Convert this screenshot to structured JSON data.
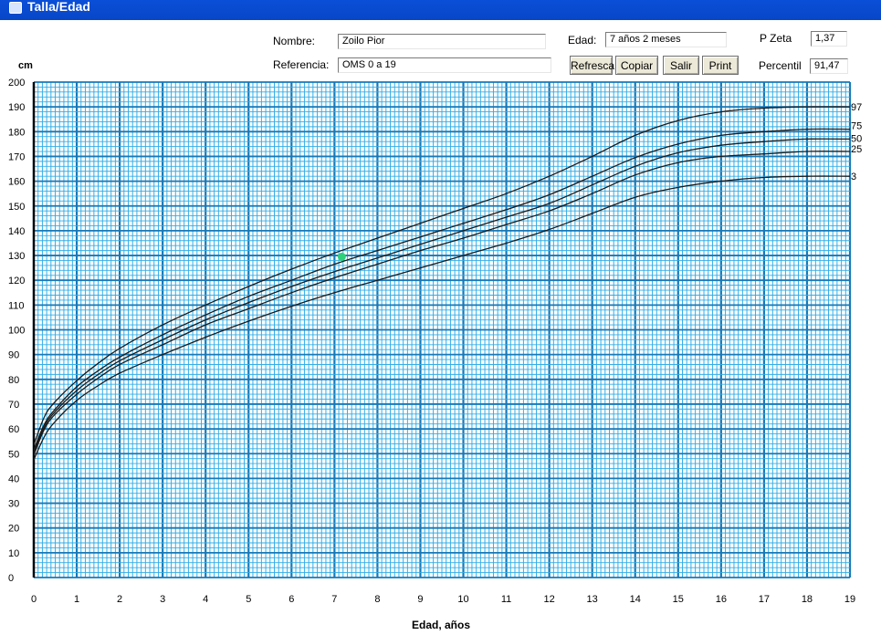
{
  "window": {
    "title": "Talla/Edad"
  },
  "form": {
    "nombre_label": "Nombre:",
    "nombre_value": "Zoilo Pior",
    "referencia_label": "Referencia:",
    "referencia_value": "OMS 0 a 19",
    "edad_label": "Edad:",
    "edad_value": "7 años 2 meses",
    "pzeta_label": "P Zeta",
    "pzeta_value": "1,37",
    "percentil_label": "Percentil",
    "percentil_value": "91,47"
  },
  "buttons": {
    "refresca": "Refresca",
    "copiar": "Copiar",
    "salir": "Salir",
    "print": "Print"
  },
  "colors": {
    "grid_minor": "#33aee6",
    "grid_major": "#1679b8",
    "curve": "#1a1a1a",
    "patient_point": "#2fd07a"
  },
  "chart_data": {
    "type": "line",
    "title": "",
    "xlabel": "Edad, años",
    "ylabel": "cm",
    "xlim": [
      0,
      19
    ],
    "ylim": [
      0,
      200
    ],
    "x_ticks": [
      0,
      1,
      2,
      3,
      4,
      5,
      6,
      7,
      8,
      9,
      10,
      11,
      12,
      13,
      14,
      15,
      16,
      17,
      18,
      19
    ],
    "y_ticks": [
      0,
      10,
      20,
      30,
      40,
      50,
      60,
      70,
      80,
      90,
      100,
      110,
      120,
      130,
      140,
      150,
      160,
      170,
      180,
      190,
      200
    ],
    "grid": true,
    "x": [
      0,
      0.25,
      0.5,
      1,
      1.5,
      2,
      3,
      4,
      5,
      6,
      7,
      8,
      9,
      10,
      11,
      12,
      13,
      14,
      15,
      16,
      17,
      18,
      19
    ],
    "series": [
      {
        "name": "97",
        "values": [
          53.5,
          65,
          71,
          79.5,
          86.5,
          92.5,
          102,
          110,
          117.5,
          124.5,
          131,
          137,
          143,
          149,
          155,
          162,
          170,
          178.5,
          184.5,
          188,
          189.5,
          190,
          190
        ]
      },
      {
        "name": "75",
        "values": [
          51.5,
          62,
          68,
          77,
          83.5,
          89,
          98,
          106,
          113.5,
          120,
          126.5,
          132,
          137.5,
          143,
          148.5,
          154.5,
          162,
          169.5,
          175,
          178.5,
          180,
          181,
          181
        ]
      },
      {
        "name": "50",
        "values": [
          50.5,
          61,
          67,
          75.5,
          82,
          87.5,
          96,
          104,
          111,
          117.5,
          123.5,
          129,
          134.5,
          140,
          145.5,
          151,
          158.5,
          166,
          171.5,
          174.5,
          176,
          177,
          177
        ]
      },
      {
        "name": "25",
        "values": [
          49.5,
          60,
          66,
          74,
          80.5,
          86,
          94,
          102,
          108.5,
          115,
          121,
          126.5,
          132,
          137,
          142.5,
          148,
          155,
          162.5,
          167.5,
          170,
          171,
          172,
          172
        ]
      },
      {
        "name": "3",
        "values": [
          47.5,
          57,
          63,
          71.5,
          77.5,
          82.5,
          90,
          97,
          103.5,
          109.5,
          115,
          120,
          125,
          130,
          135,
          140.5,
          147,
          153.5,
          157.5,
          160,
          161.5,
          162,
          162
        ]
      }
    ],
    "points": [
      {
        "x": 7.17,
        "y": 129.5
      }
    ]
  }
}
